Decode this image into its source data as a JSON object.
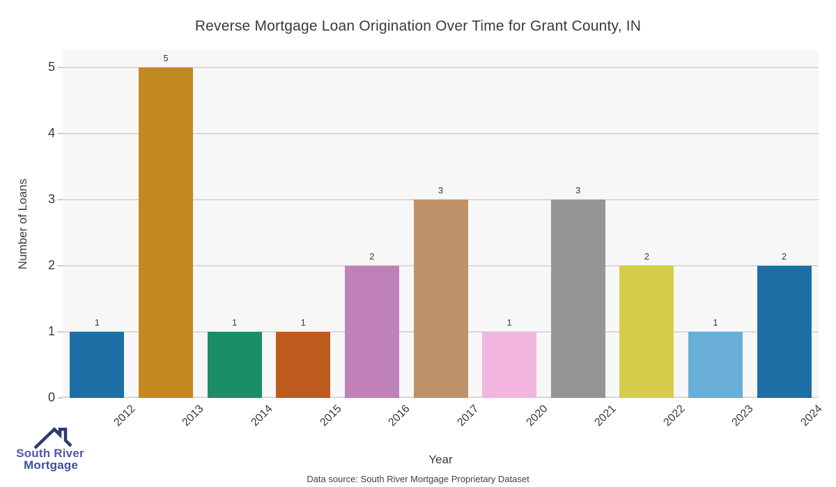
{
  "header": {
    "title": "Reverse Mortgage Loan Origination Over Time for Grant County, IN"
  },
  "chart_data": {
    "type": "bar",
    "title": "Reverse Mortgage Loan Origination Over Time for Grant County, IN",
    "categories": [
      "2012",
      "2013",
      "2014",
      "2015",
      "2016",
      "2017",
      "2020",
      "2021",
      "2022",
      "2023",
      "2024"
    ],
    "values": [
      1,
      5,
      1,
      1,
      2,
      3,
      1,
      3,
      2,
      1,
      2
    ],
    "bar_colors": [
      "#1e6fa5",
      "#c38820",
      "#1b8e68",
      "#bd5b1e",
      "#c080b8",
      "#bf9169",
      "#f2b5e0",
      "#959595",
      "#d5cc4a",
      "#69aed7",
      "#1e6fa5"
    ],
    "xlabel": "Year",
    "ylabel": "Number of Loans",
    "ylim": [
      0,
      5.26
    ],
    "yticks": [
      0,
      1,
      2,
      3,
      4,
      5
    ],
    "grid": "horizontal-only",
    "legend": "none",
    "value_labels_shown": true,
    "plot_background": "#f7f7f7",
    "gridline_color": "#d9d9d9",
    "tick_color": "#c9c9c9",
    "text_color": "#3a3a3a"
  },
  "footer": {
    "source": "Data source: South River Mortgage Proprietary Dataset"
  },
  "logo": {
    "line1": "South River",
    "line2": "Mortgage",
    "roof_color": "#2c3a72",
    "line1_color": "#4a5aa8",
    "line2_color": "#3b4fa3"
  }
}
